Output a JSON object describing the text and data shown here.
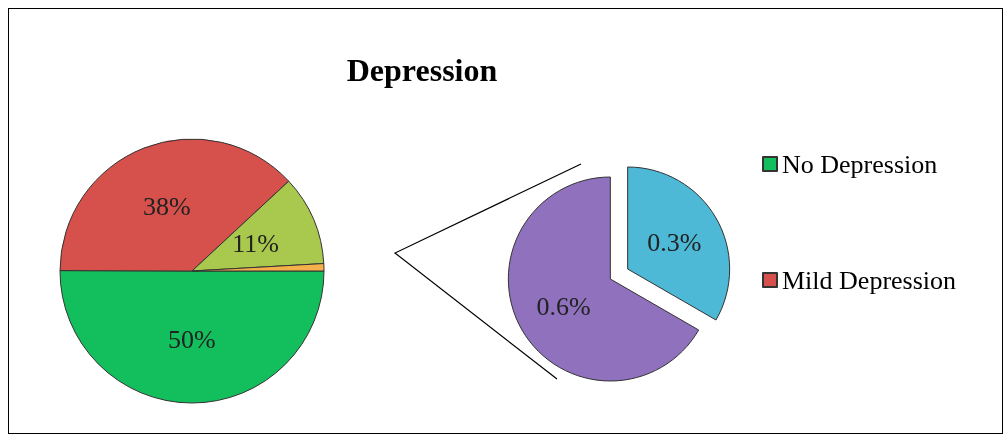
{
  "chart_data": [
    {
      "type": "pie",
      "title": "Depression",
      "categories": [
        "No Depression",
        "Mild Depression",
        null,
        null
      ],
      "values": [
        50,
        38,
        11,
        0.9
      ],
      "colors": [
        "#12bf5c",
        "#d6504c",
        "#a9c94e",
        "#f4b04a"
      ],
      "value_labels": [
        "50%",
        "38%",
        "11%",
        null
      ],
      "legend": "right"
    },
    {
      "type": "pie",
      "categories": [
        null,
        null
      ],
      "values": [
        0.6,
        0.3
      ],
      "colors": [
        "#8f71bd",
        "#4db9d7"
      ],
      "value_labels": [
        "0.6%",
        "0.3%"
      ]
    }
  ]
}
